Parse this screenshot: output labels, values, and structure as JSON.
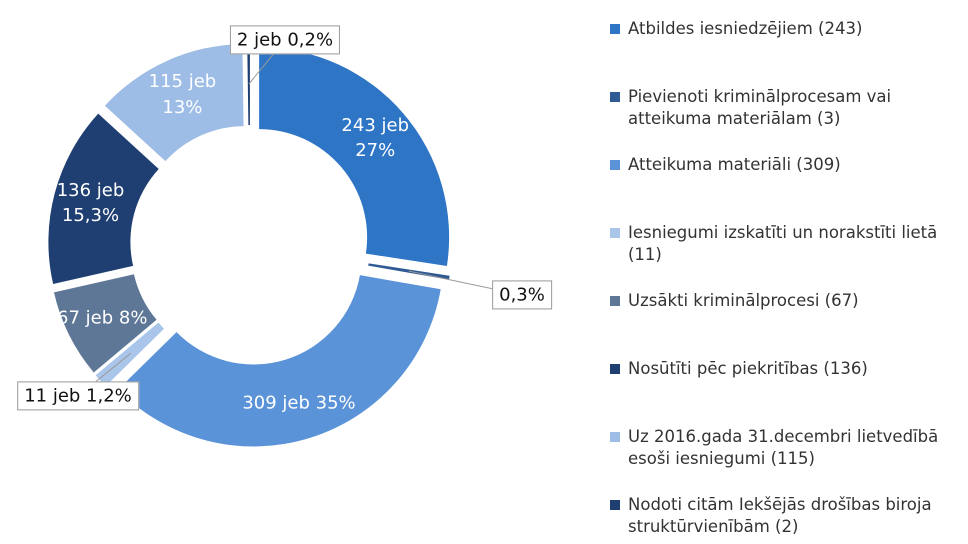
{
  "chart_data": {
    "type": "donut",
    "categories": [
      "Atbildes iesniedzējiem (243)",
      "Pievienoti kriminālprocesam vai atteikuma materiālam (3)",
      "Atteikuma materiāli (309)",
      "Iesniegumi izskatīti un norakstīti lietā (11)",
      "Uzsākti kriminālprocesi (67)",
      "Nosūtīti pēc piekritības (136)",
      "Uz 2016.gada 31.decembri lietvedībā esoši iesniegumi (115)",
      "Nodoti citām Iekšējās drošības biroja struktūrvienībām (2)"
    ],
    "values": [
      243,
      3,
      309,
      11,
      67,
      136,
      115,
      2
    ],
    "value_labels": [
      "243 jeb 27%",
      "0,3%",
      "309 jeb 35%",
      "11 jeb 1,2%",
      "67 jeb 8%",
      "136 jeb 15,3%",
      "115 jeb 13%",
      "2 jeb 0,2%"
    ],
    "colors": [
      "#2e75c6",
      "#2f5a93",
      "#5b93d8",
      "#a9c6ea",
      "#5e7796",
      "#1f3f72",
      "#9dbde6",
      "#1f3f72"
    ],
    "legend": "right"
  }
}
